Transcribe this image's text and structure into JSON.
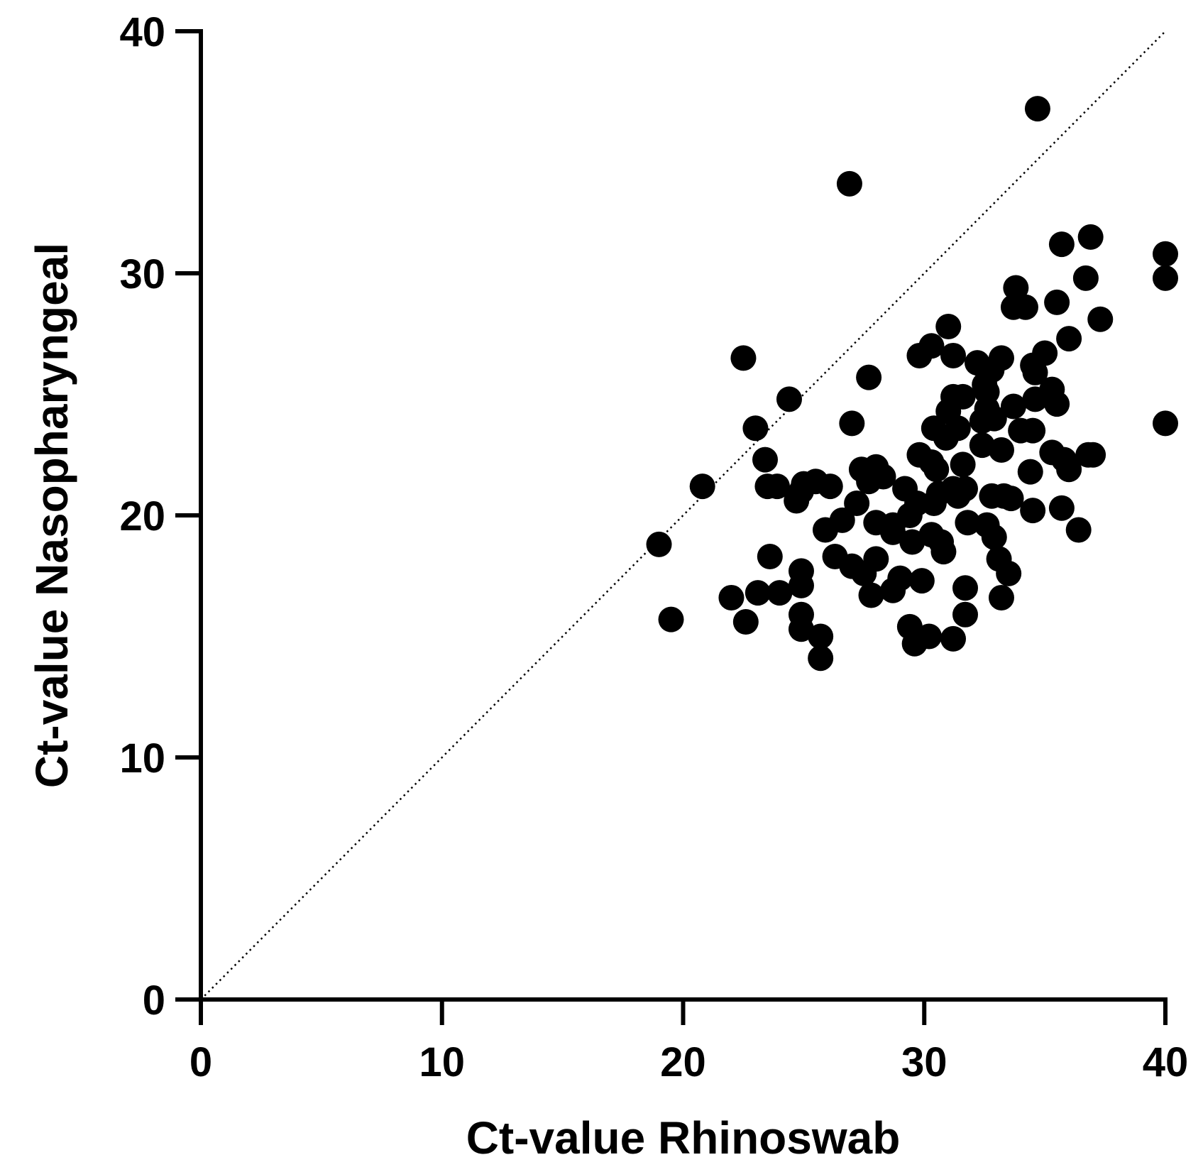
{
  "chart_data": {
    "type": "scatter",
    "title": "",
    "xlabel": "Ct-value Rhinoswab",
    "ylabel": "Ct-value Nasopharyngeal",
    "xlim": [
      0,
      40
    ],
    "ylim": [
      0,
      40
    ],
    "xticks": [
      0,
      10,
      20,
      30,
      40
    ],
    "yticks": [
      0,
      10,
      20,
      30,
      40
    ],
    "grid": false,
    "legend": "none",
    "reference_line": {
      "label": "",
      "style": "dotted",
      "from": [
        0,
        0
      ],
      "to": [
        40,
        40
      ]
    },
    "marker_color": "#000000",
    "series": [
      {
        "points": [
          [
            34.7,
            36.8
          ],
          [
            26.9,
            33.7
          ],
          [
            36.9,
            31.5
          ],
          [
            35.7,
            31.2
          ],
          [
            40.0,
            30.8
          ],
          [
            40.0,
            29.8
          ],
          [
            36.7,
            29.8
          ],
          [
            33.8,
            29.4
          ],
          [
            33.7,
            28.6
          ],
          [
            34.2,
            28.6
          ],
          [
            35.5,
            28.8
          ],
          [
            37.3,
            28.1
          ],
          [
            36.0,
            27.3
          ],
          [
            31.0,
            27.8
          ],
          [
            30.3,
            27.0
          ],
          [
            29.8,
            26.6
          ],
          [
            31.2,
            26.6
          ],
          [
            22.5,
            26.5
          ],
          [
            33.2,
            26.5
          ],
          [
            32.2,
            26.3
          ],
          [
            34.5,
            26.2
          ],
          [
            35.0,
            26.7
          ],
          [
            32.8,
            26.0
          ],
          [
            34.6,
            25.9
          ],
          [
            27.7,
            25.7
          ],
          [
            32.5,
            25.4
          ],
          [
            32.6,
            25.1
          ],
          [
            35.3,
            25.2
          ],
          [
            31.2,
            24.9
          ],
          [
            31.6,
            24.9
          ],
          [
            24.4,
            24.8
          ],
          [
            34.6,
            24.8
          ],
          [
            35.5,
            24.6
          ],
          [
            33.7,
            24.5
          ],
          [
            32.6,
            24.4
          ],
          [
            31.0,
            24.3
          ],
          [
            32.4,
            23.9
          ],
          [
            32.9,
            24.0
          ],
          [
            27.0,
            23.8
          ],
          [
            40.0,
            23.8
          ],
          [
            23.0,
            23.6
          ],
          [
            30.4,
            23.6
          ],
          [
            31.4,
            23.6
          ],
          [
            34.0,
            23.5
          ],
          [
            34.5,
            23.5
          ],
          [
            30.9,
            23.2
          ],
          [
            32.4,
            22.9
          ],
          [
            33.2,
            22.7
          ],
          [
            35.3,
            22.6
          ],
          [
            29.8,
            22.5
          ],
          [
            23.4,
            22.3
          ],
          [
            30.3,
            22.2
          ],
          [
            35.8,
            22.3
          ],
          [
            36.8,
            22.5
          ],
          [
            37.0,
            22.5
          ],
          [
            28.0,
            22.0
          ],
          [
            27.4,
            21.9
          ],
          [
            30.5,
            21.9
          ],
          [
            31.6,
            22.1
          ],
          [
            34.4,
            21.8
          ],
          [
            36.0,
            21.9
          ],
          [
            25.0,
            21.3
          ],
          [
            25.5,
            21.4
          ],
          [
            26.1,
            21.2
          ],
          [
            27.7,
            21.4
          ],
          [
            28.3,
            21.6
          ],
          [
            20.8,
            21.2
          ],
          [
            23.5,
            21.2
          ],
          [
            23.9,
            21.2
          ],
          [
            24.9,
            21.0
          ],
          [
            29.2,
            21.1
          ],
          [
            31.2,
            21.1
          ],
          [
            31.7,
            21.1
          ],
          [
            30.6,
            20.9
          ],
          [
            31.4,
            20.8
          ],
          [
            32.8,
            20.8
          ],
          [
            33.3,
            20.8
          ],
          [
            33.6,
            20.7
          ],
          [
            29.7,
            20.5
          ],
          [
            30.4,
            20.5
          ],
          [
            24.7,
            20.6
          ],
          [
            27.2,
            20.5
          ],
          [
            34.5,
            20.2
          ],
          [
            35.7,
            20.3
          ],
          [
            29.4,
            20.0
          ],
          [
            26.6,
            19.8
          ],
          [
            28.0,
            19.7
          ],
          [
            28.7,
            19.6
          ],
          [
            31.8,
            19.7
          ],
          [
            32.6,
            19.6
          ],
          [
            25.9,
            19.4
          ],
          [
            28.7,
            19.3
          ],
          [
            30.3,
            19.2
          ],
          [
            32.9,
            19.1
          ],
          [
            36.4,
            19.4
          ],
          [
            30.7,
            18.9
          ],
          [
            29.5,
            18.9
          ],
          [
            19.0,
            18.8
          ],
          [
            30.8,
            18.5
          ],
          [
            23.6,
            18.3
          ],
          [
            26.3,
            18.3
          ],
          [
            28.0,
            18.2
          ],
          [
            33.1,
            18.2
          ],
          [
            27.0,
            17.9
          ],
          [
            24.9,
            17.7
          ],
          [
            27.5,
            17.6
          ],
          [
            33.5,
            17.6
          ],
          [
            29.0,
            17.4
          ],
          [
            29.9,
            17.3
          ],
          [
            24.9,
            17.1
          ],
          [
            31.7,
            17.0
          ],
          [
            23.1,
            16.8
          ],
          [
            24.0,
            16.8
          ],
          [
            27.8,
            16.7
          ],
          [
            28.7,
            16.9
          ],
          [
            22.0,
            16.6
          ],
          [
            33.2,
            16.6
          ],
          [
            24.9,
            15.9
          ],
          [
            31.7,
            15.9
          ],
          [
            19.5,
            15.7
          ],
          [
            22.6,
            15.6
          ],
          [
            29.4,
            15.4
          ],
          [
            24.9,
            15.3
          ],
          [
            25.7,
            15.0
          ],
          [
            30.2,
            15.0
          ],
          [
            31.2,
            14.9
          ],
          [
            29.6,
            14.7
          ],
          [
            25.7,
            14.1
          ]
        ]
      }
    ]
  }
}
